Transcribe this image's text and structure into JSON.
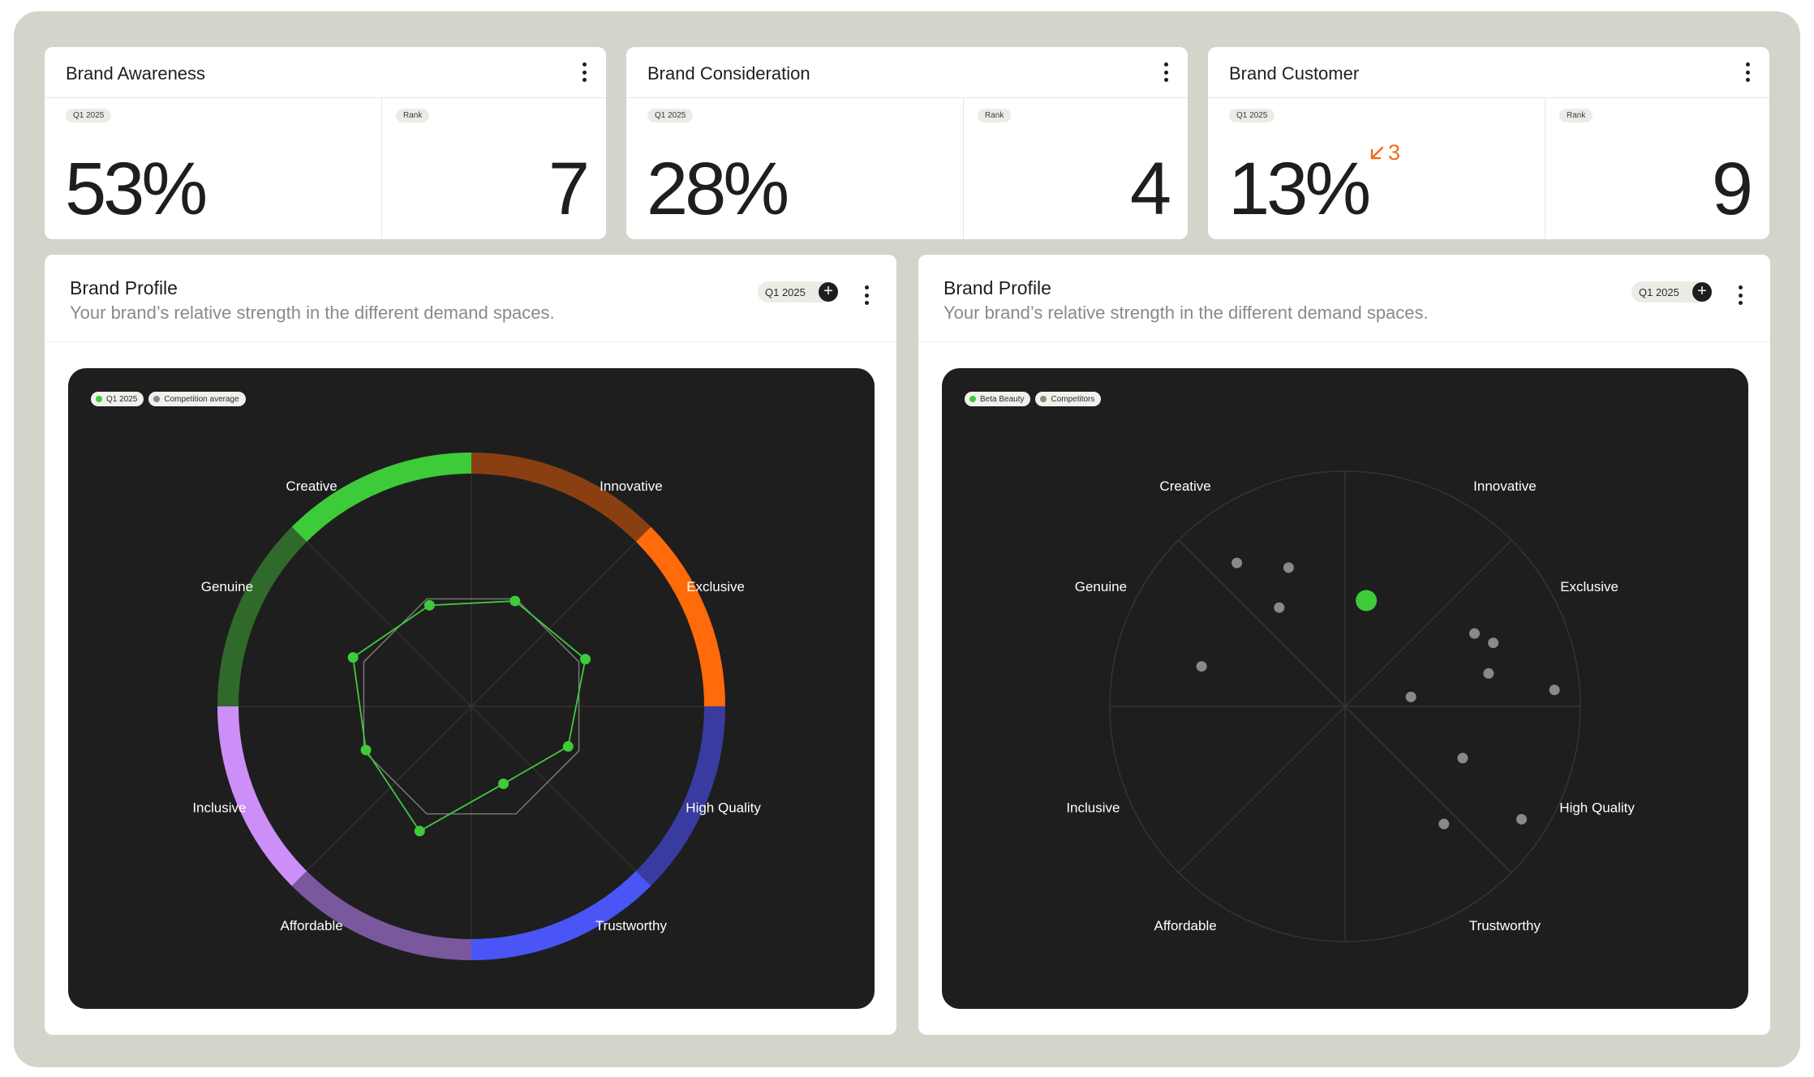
{
  "kpis": [
    {
      "title": "Brand Awareness",
      "period": "Q1 2025",
      "rank_label": "Rank",
      "value": "53%",
      "rank": "7"
    },
    {
      "title": "Brand Consideration",
      "period": "Q1 2025",
      "rank_label": "Rank",
      "value": "28%",
      "rank": "4"
    },
    {
      "title": "Brand Customer",
      "period": "Q1 2025",
      "rank_label": "Rank",
      "value": "13%",
      "rank": "9",
      "delta": "3",
      "delta_direction": "down",
      "delta_color": "#f26a1b"
    }
  ],
  "panels": [
    {
      "title": "Brand Profile",
      "subtitle": "Your brand’s relative strength in the different demand spaces.",
      "period": "Q1 2025",
      "legend": [
        {
          "label": "Q1 2025",
          "color": "#3ecb3a"
        },
        {
          "label": "Competition average",
          "color": "#8a8a84"
        }
      ]
    },
    {
      "title": "Brand Profile",
      "subtitle": "Your brand’s relative strength in the different demand spaces.",
      "period": "Q1 2025",
      "legend": [
        {
          "label": "Beta Beauty",
          "color": "#3ecb3a"
        },
        {
          "label": "Competitors",
          "color": "#8a8a84"
        }
      ]
    }
  ],
  "colors": {
    "accent_green": "#3ecb3a",
    "competitor_grey": "#8a8a84",
    "delta_orange": "#f26a1b",
    "frame": "#d4d4cb",
    "chart_bg": "#1e1e1e"
  },
  "chart_data": [
    {
      "type": "radar",
      "title": "",
      "axes": [
        "Innovative",
        "Exclusive",
        "High Quality",
        "Trustworthy",
        "Affordable",
        "Inclusive",
        "Genuine",
        "Creative"
      ],
      "ring_colors": [
        "#8a3f12",
        "#ff6a0a",
        "#3a3ba0",
        "#4a55f5",
        "#7a589e",
        "#cc8ef7",
        "#2f6a2b",
        "#3ecb3a"
      ],
      "series": [
        {
          "name": "Q1 2025",
          "color": "#3ecb3a",
          "values": [
            0.49,
            0.53,
            0.45,
            0.36,
            0.58,
            0.49,
            0.55,
            0.47
          ]
        },
        {
          "name": "Competition average",
          "color": "#8a8a84",
          "values": [
            0.5,
            0.5,
            0.5,
            0.5,
            0.5,
            0.5,
            0.5,
            0.5
          ]
        }
      ]
    },
    {
      "type": "scatter",
      "title": "",
      "sectors": [
        "Innovative",
        "Exclusive",
        "High Quality",
        "Trustworthy",
        "Affordable",
        "Inclusive",
        "Genuine",
        "Creative"
      ],
      "series": [
        {
          "name": "Beta Beauty",
          "color": "#3ecb3a",
          "points": [
            {
              "x": 0.09,
              "y": 0.45
            }
          ]
        },
        {
          "name": "Competitors",
          "color": "#8a8a84",
          "points": [
            {
              "x": -0.46,
              "y": 0.61
            },
            {
              "x": -0.24,
              "y": 0.59
            },
            {
              "x": -0.28,
              "y": 0.42
            },
            {
              "x": -0.61,
              "y": 0.17
            },
            {
              "x": 0.55,
              "y": 0.31
            },
            {
              "x": 0.63,
              "y": 0.27
            },
            {
              "x": 0.61,
              "y": 0.14
            },
            {
              "x": 0.28,
              "y": 0.04
            },
            {
              "x": 0.89,
              "y": 0.07
            },
            {
              "x": 0.5,
              "y": -0.22
            },
            {
              "x": 0.42,
              "y": -0.5
            },
            {
              "x": 0.75,
              "y": -0.48
            }
          ]
        }
      ]
    }
  ]
}
